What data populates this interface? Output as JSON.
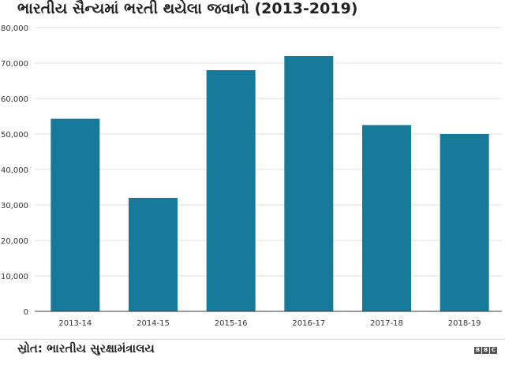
{
  "title": "ભારતીય સૈન્યમાં ભરતી થયેલા જવાનો (2013-2019)",
  "source": "સ્રોત: ભારતીય સુરક્ષામંત્રાલય",
  "brand": "BBC",
  "colors": {
    "bar": "#177a9a",
    "grid": "#dddddd",
    "axis": "#333333",
    "text": "#333333"
  },
  "chart_data": {
    "type": "bar",
    "categories": [
      "2013-14",
      "2014-15",
      "2015-16",
      "2016-17",
      "2017-18",
      "2018-19"
    ],
    "values": [
      54300,
      32000,
      68000,
      72000,
      52500,
      50000
    ],
    "ylim": [
      0,
      80000
    ],
    "yticks": [
      0,
      10000,
      20000,
      30000,
      40000,
      50000,
      60000,
      70000,
      80000
    ],
    "ytick_labels": [
      "0",
      "10,000",
      "20,000",
      "30,000",
      "40,000",
      "50,000",
      "60,000",
      "70,000",
      "80,000"
    ],
    "xlabel": "",
    "ylabel": "",
    "grid": true,
    "legend": false
  }
}
